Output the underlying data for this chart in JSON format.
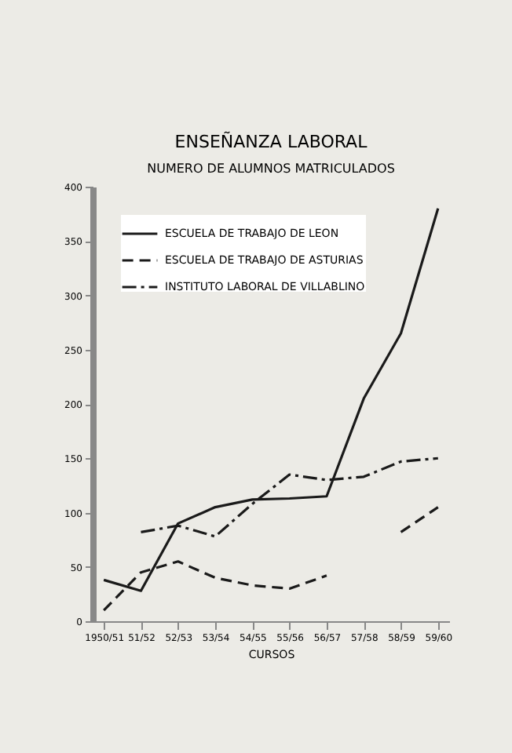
{
  "chart_data": {
    "type": "line",
    "title": "ENSEÑANZA LABORAL",
    "subtitle": "NUMERO DE ALUMNOS MATRICULADOS",
    "xlabel": "CURSOS",
    "categories": [
      "1950/51",
      "51/52",
      "52/53",
      "53/54",
      "54/55",
      "55/56",
      "56/57",
      "57/58",
      "58/59",
      "59/60"
    ],
    "series": [
      {
        "name": "ESCUELA DE TRABAJO DE LEON",
        "color": "#1a1a1a",
        "line_style": "solid",
        "values": [
          38,
          28,
          90,
          105,
          112,
          113,
          115,
          205,
          265,
          380
        ]
      },
      {
        "name": "ESCUELA DE TRABAJO DE ASTURIAS",
        "color": "#1a1a1a",
        "line_style": "dashed",
        "values": [
          10,
          45,
          55,
          40,
          33,
          30,
          42,
          null,
          82,
          105
        ]
      },
      {
        "name": "INSTITUTO LABORAL DE VILLABLINO",
        "color": "#1a1a1a",
        "line_style": "dotted",
        "values": [
          null,
          82,
          88,
          78,
          108,
          135,
          130,
          133,
          147,
          150
        ]
      }
    ],
    "ylim": [
      0,
      400
    ],
    "yticks": [
      0,
      50,
      100,
      150,
      200,
      250,
      300,
      350,
      400
    ],
    "grid": false,
    "legend": "top left",
    "marker": "none"
  }
}
